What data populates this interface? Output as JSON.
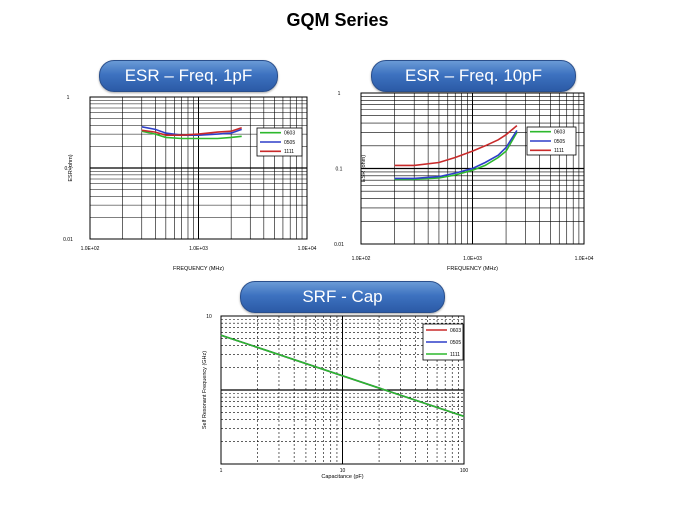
{
  "page_title": "GQM Series",
  "charts": {
    "esr1": {
      "pill": "ESR – Freq.  1pF"
    },
    "esr10": {
      "pill": "ESR – Freq. 10pF"
    },
    "srf": {
      "pill": "SRF - Cap"
    }
  },
  "chart_data": [
    {
      "type": "line",
      "title": "ESR – Freq.  1pF",
      "xlabel": "FREQUENCY  (MHz)",
      "ylabel": "ESR  (ohm)",
      "xscale": "log",
      "yscale": "log",
      "xlim": [
        100,
        10000
      ],
      "ylim": [
        0.01,
        1
      ],
      "xticks": [
        "1.0E+02",
        "1.0E+03",
        "1.0E+04"
      ],
      "yticks": [
        "1",
        "0.1",
        "0.01"
      ],
      "grid": true,
      "legend": "top-right",
      "series": [
        {
          "name": "0603",
          "color": "#2db82d",
          "x": [
            300,
            400,
            500,
            700,
            1000,
            1500,
            2000,
            2500
          ],
          "y": [
            0.33,
            0.3,
            0.27,
            0.26,
            0.26,
            0.26,
            0.27,
            0.28
          ]
        },
        {
          "name": "0505",
          "color": "#2e3fc9",
          "x": [
            300,
            400,
            500,
            700,
            1000,
            1500,
            2000,
            2500
          ],
          "y": [
            0.38,
            0.35,
            0.31,
            0.29,
            0.29,
            0.3,
            0.31,
            0.35
          ]
        },
        {
          "name": "1111",
          "color": "#c82a2a",
          "x": [
            300,
            400,
            500,
            700,
            1000,
            1500,
            2000,
            2500
          ],
          "y": [
            0.34,
            0.32,
            0.29,
            0.29,
            0.3,
            0.32,
            0.33,
            0.37
          ]
        }
      ]
    },
    {
      "type": "line",
      "title": "ESR – Freq. 10pF",
      "xlabel": "FREQUENCY  (MHz)",
      "ylabel": "ESR  (ohm)",
      "xscale": "log",
      "yscale": "log",
      "xlim": [
        100,
        10000
      ],
      "ylim": [
        0.01,
        1
      ],
      "xticks": [
        "1.0E+02",
        "1.0E+03",
        "1.0E+04"
      ],
      "yticks": [
        "1",
        "0.1",
        "0.01"
      ],
      "grid": true,
      "legend": "top-right",
      "series": [
        {
          "name": "0603",
          "color": "#2db82d",
          "x": [
            200,
            300,
            500,
            700,
            1000,
            1300,
            1700,
            2000,
            2500
          ],
          "y": [
            0.072,
            0.072,
            0.075,
            0.082,
            0.095,
            0.11,
            0.14,
            0.17,
            0.3
          ]
        },
        {
          "name": "0505",
          "color": "#2e3fc9",
          "x": [
            200,
            300,
            500,
            700,
            1000,
            1300,
            1700,
            2000,
            2500
          ],
          "y": [
            0.074,
            0.074,
            0.078,
            0.087,
            0.1,
            0.12,
            0.15,
            0.19,
            0.32
          ]
        },
        {
          "name": "1111",
          "color": "#c82a2a",
          "x": [
            200,
            300,
            500,
            700,
            1000,
            1300,
            1700,
            2000,
            2500
          ],
          "y": [
            0.11,
            0.11,
            0.12,
            0.14,
            0.17,
            0.2,
            0.24,
            0.28,
            0.37
          ]
        }
      ]
    },
    {
      "type": "line",
      "title": "SRF - Cap",
      "xlabel": "Capacitance (pF)",
      "ylabel": "Self Resonant Frequency (GHz)",
      "xscale": "log",
      "yscale": "log",
      "xlim": [
        1,
        100
      ],
      "ylim": [
        0.1,
        10
      ],
      "xticks": [
        "1",
        "10",
        "100"
      ],
      "yticks": [
        "10"
      ],
      "grid": true,
      "legend": "top-right",
      "series": [
        {
          "name": "0603",
          "color": "#c82a2a",
          "x": [
            1,
            100
          ],
          "y": [
            5.5,
            0.44
          ]
        },
        {
          "name": "0505",
          "color": "#2e3fc9",
          "x": [
            1,
            100
          ],
          "y": [
            5.5,
            0.44
          ]
        },
        {
          "name": "1111",
          "color": "#2db82d",
          "x": [
            1,
            100
          ],
          "y": [
            5.5,
            0.44
          ]
        }
      ]
    }
  ]
}
